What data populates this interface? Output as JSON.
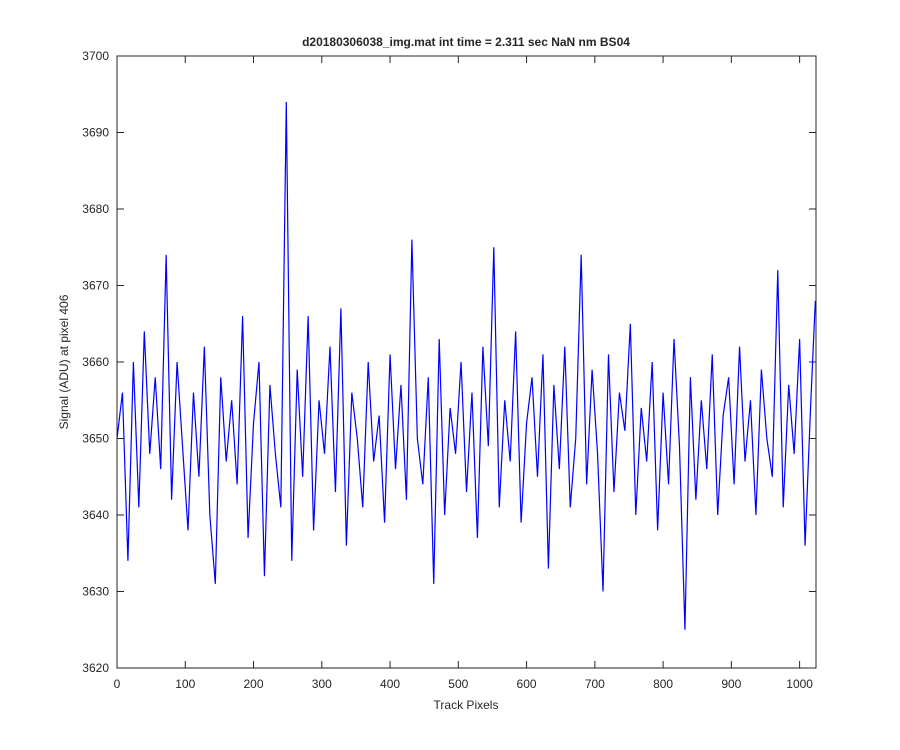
{
  "chart_data": {
    "type": "line",
    "title": "d20180306038_img.mat int time = 2.311 sec  NaN nm BS04",
    "x_label": "Track Pixels",
    "y_label": "Signal (ADU) at pixel 406",
    "xlim": [
      0,
      1024
    ],
    "ylim": [
      3620,
      3700
    ],
    "xticks": [
      0,
      100,
      200,
      300,
      400,
      500,
      600,
      700,
      800,
      900,
      1000
    ],
    "yticks": [
      3620,
      3630,
      3640,
      3650,
      3660,
      3670,
      3680,
      3690,
      3700
    ],
    "grid": false,
    "series": [
      {
        "name": "Signal",
        "color": "#0000ff",
        "x": [
          0,
          8,
          16,
          24,
          32,
          40,
          48,
          56,
          64,
          72,
          80,
          88,
          96,
          104,
          112,
          120,
          128,
          136,
          144,
          152,
          160,
          168,
          176,
          184,
          192,
          200,
          208,
          216,
          224,
          232,
          240,
          248,
          256,
          264,
          272,
          280,
          288,
          296,
          304,
          312,
          320,
          328,
          336,
          344,
          352,
          360,
          368,
          376,
          384,
          392,
          400,
          408,
          416,
          424,
          432,
          440,
          448,
          456,
          464,
          472,
          480,
          488,
          496,
          504,
          512,
          520,
          528,
          536,
          544,
          552,
          560,
          568,
          576,
          584,
          592,
          600,
          608,
          616,
          624,
          632,
          640,
          648,
          656,
          664,
          672,
          680,
          688,
          696,
          704,
          712,
          720,
          728,
          736,
          744,
          752,
          760,
          768,
          776,
          784,
          792,
          800,
          808,
          816,
          824,
          832,
          840,
          848,
          856,
          864,
          872,
          880,
          888,
          896,
          904,
          912,
          920,
          928,
          936,
          944,
          952,
          960,
          968,
          976,
          984,
          992,
          1000,
          1008,
          1016,
          1023
        ],
        "values": [
          3650,
          3656,
          3634,
          3660,
          3641,
          3664,
          3648,
          3658,
          3646,
          3674,
          3642,
          3660,
          3649,
          3638,
          3656,
          3645,
          3662,
          3640,
          3631,
          3658,
          3647,
          3655,
          3644,
          3666,
          3637,
          3652,
          3660,
          3632,
          3657,
          3648,
          3641,
          3694,
          3634,
          3659,
          3645,
          3666,
          3638,
          3655,
          3648,
          3662,
          3643,
          3667,
          3636,
          3656,
          3650,
          3641,
          3660,
          3647,
          3653,
          3639,
          3661,
          3646,
          3657,
          3642,
          3676,
          3650,
          3644,
          3658,
          3631,
          3663,
          3640,
          3654,
          3648,
          3660,
          3643,
          3656,
          3637,
          3662,
          3649,
          3675,
          3641,
          3655,
          3647,
          3664,
          3639,
          3652,
          3658,
          3645,
          3661,
          3633,
          3657,
          3646,
          3662,
          3641,
          3650,
          3674,
          3644,
          3659,
          3648,
          3630,
          3661,
          3643,
          3656,
          3651,
          3665,
          3640,
          3654,
          3647,
          3660,
          3638,
          3656,
          3644,
          3663,
          3649,
          3625,
          3658,
          3642,
          3655,
          3646,
          3661,
          3640,
          3653,
          3658,
          3644,
          3662,
          3647,
          3655,
          3640,
          3659,
          3650,
          3645,
          3672,
          3641,
          3657,
          3648,
          3663,
          3636,
          3654,
          3668
        ]
      }
    ]
  }
}
